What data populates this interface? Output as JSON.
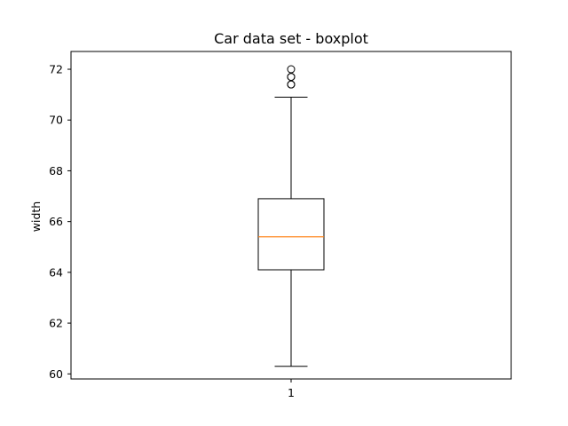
{
  "chart_data": {
    "type": "boxplot",
    "title": "Car data set - boxplot",
    "xlabel": "",
    "ylabel": "width",
    "categories": [
      "1"
    ],
    "ylim": [
      59.8,
      72.7
    ],
    "yticks": [
      60,
      62,
      64,
      66,
      68,
      70,
      72
    ],
    "boxes": [
      {
        "label": "1",
        "whisker_low": 60.3,
        "q1": 64.1,
        "median": 65.4,
        "q3": 66.9,
        "whisker_high": 70.9,
        "outliers": [
          71.4,
          71.4,
          71.7,
          71.7,
          72.0
        ]
      }
    ],
    "grid": false,
    "colors": {
      "median": "#ff7f0e",
      "box": "#000000",
      "outlier_edge": "#000000"
    }
  }
}
